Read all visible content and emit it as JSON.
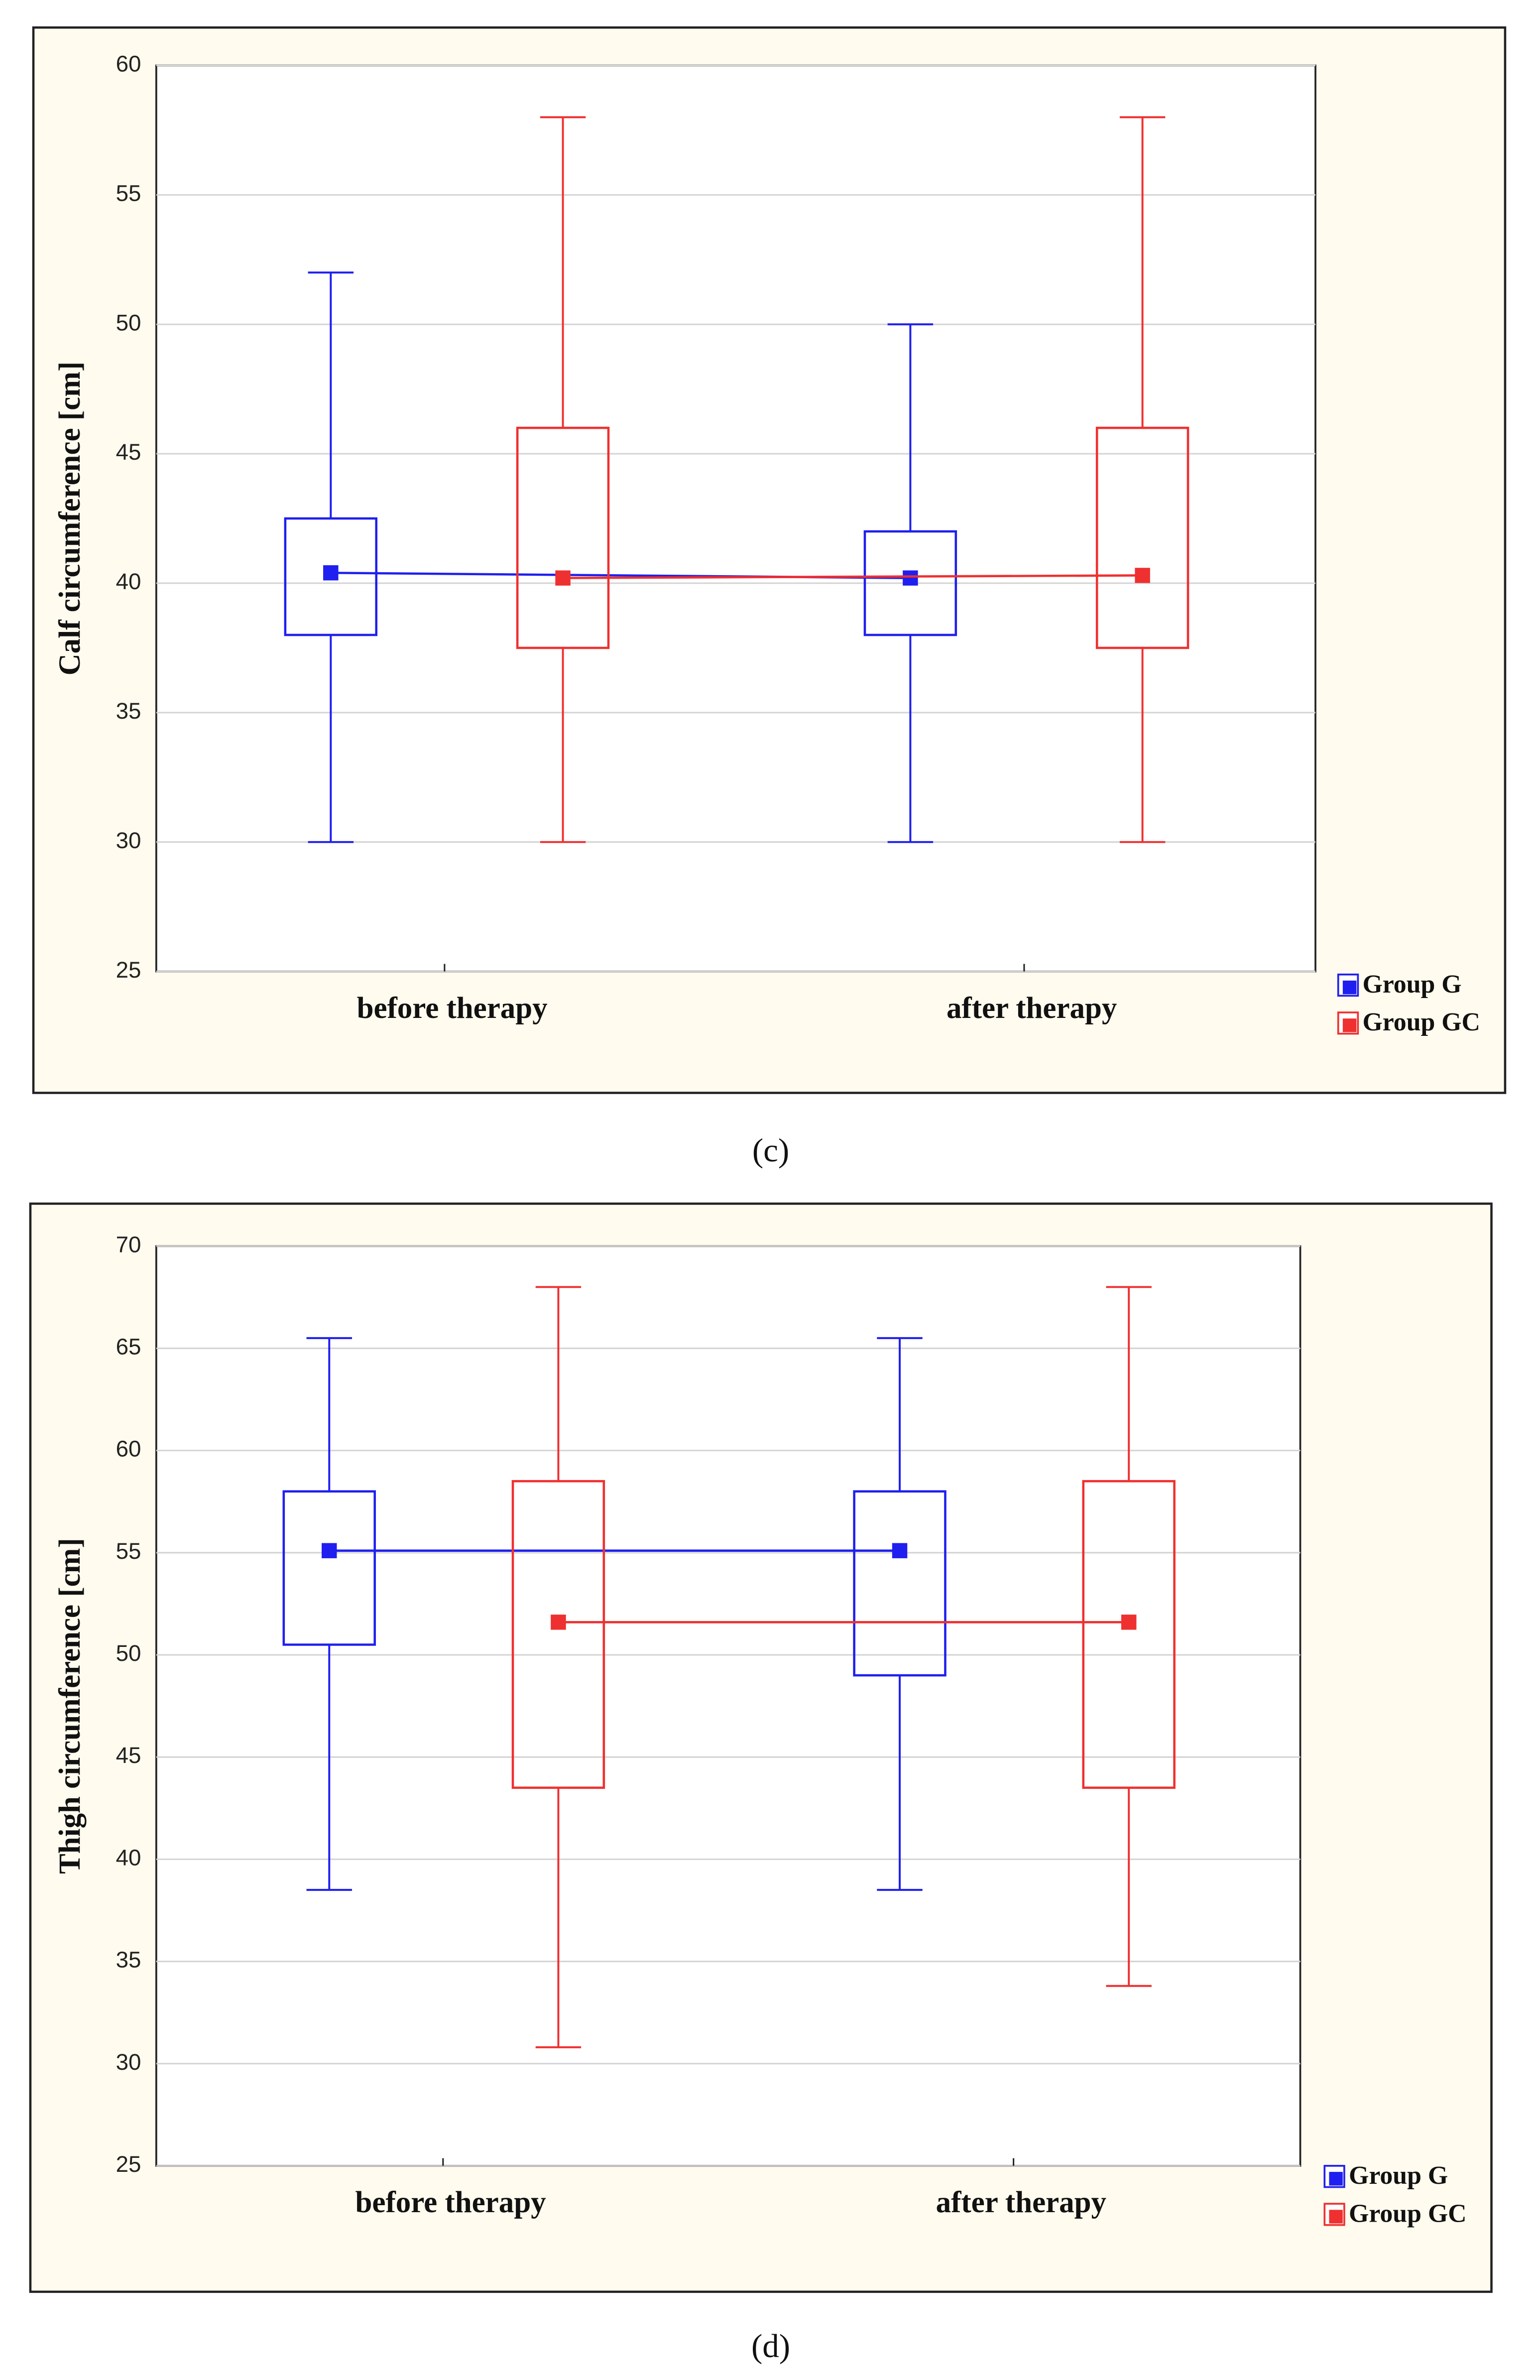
{
  "chart_data": [
    {
      "type": "box",
      "caption": "(c)",
      "y_label": "Calf circumference [cm]",
      "categories": [
        "before therapy",
        "after therapy"
      ],
      "ylim": [
        25,
        60
      ],
      "yticks": [
        25,
        30,
        35,
        40,
        45,
        50,
        55,
        60
      ],
      "grid": true,
      "series": [
        {
          "name": "Group G",
          "color": "#1f1fef",
          "min": [
            30,
            30
          ],
          "q1": [
            38,
            38
          ],
          "median": [
            40.4,
            40.2
          ],
          "q3": [
            42.5,
            42
          ],
          "max": [
            52,
            50
          ]
        },
        {
          "name": "Group GC",
          "color": "#ef3030",
          "min": [
            30,
            30
          ],
          "q1": [
            37.5,
            37.5
          ],
          "median": [
            40.2,
            40.3
          ],
          "q3": [
            46,
            46
          ],
          "max": [
            58,
            58
          ]
        }
      ]
    },
    {
      "type": "box",
      "caption": "(d)",
      "y_label": "Thigh circumference [cm]",
      "categories": [
        "before therapy",
        "after therapy"
      ],
      "ylim": [
        25,
        70
      ],
      "yticks": [
        25,
        30,
        35,
        40,
        45,
        50,
        55,
        60,
        65,
        70
      ],
      "grid": true,
      "series": [
        {
          "name": "Group G",
          "color": "#1f1fef",
          "min": [
            38.5,
            38.5
          ],
          "q1": [
            50.5,
            49
          ],
          "median": [
            55.1,
            55.1
          ],
          "q3": [
            58,
            58
          ],
          "max": [
            65.5,
            65.5
          ]
        },
        {
          "name": "Group GC",
          "color": "#ef3030",
          "min": [
            30.8,
            33.8
          ],
          "q1": [
            43.5,
            43.5
          ],
          "median": [
            51.6,
            51.6
          ],
          "q3": [
            58.5,
            58.5
          ],
          "max": [
            68,
            68
          ]
        }
      ]
    }
  ]
}
